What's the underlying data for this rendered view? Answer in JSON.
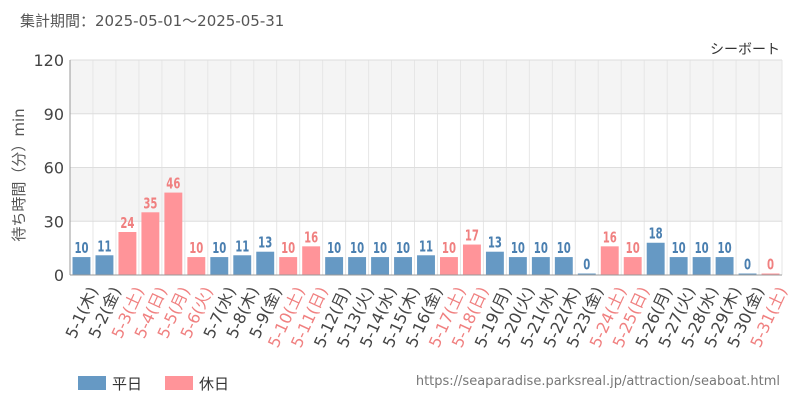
{
  "period_label": "集計期間：2025-05-01～2025-05-31",
  "source_url": "https://seaparadise.parksreal.jp/attraction/seaboat.html",
  "colors": {
    "weekday": "#6699c4",
    "holiday": "#ff9499",
    "weekday_label": "#4a7fb0",
    "holiday_label": "#f08080"
  },
  "chart_data": {
    "type": "bar",
    "title": "シーボート",
    "ylabel": "待ち時間（分）min",
    "ylim": [
      0,
      120
    ],
    "yticks": [
      0,
      30,
      60,
      90,
      120
    ],
    "grid": true,
    "legend_position": "bottom-left",
    "legend": [
      {
        "name": "平日",
        "key": "weekday"
      },
      {
        "name": "休日",
        "key": "holiday"
      }
    ],
    "categories": [
      "5-1(木)",
      "5-2(金)",
      "5-3(土)",
      "5-4(日)",
      "5-5(月)",
      "5-6(火)",
      "5-7(水)",
      "5-8(木)",
      "5-9(金)",
      "5-10(土)",
      "5-11(日)",
      "5-12(月)",
      "5-13(火)",
      "5-14(水)",
      "5-15(木)",
      "5-16(金)",
      "5-17(土)",
      "5-18(日)",
      "5-19(月)",
      "5-20(火)",
      "5-21(水)",
      "5-22(木)",
      "5-23(金)",
      "5-24(土)",
      "5-25(日)",
      "5-26(月)",
      "5-27(火)",
      "5-28(水)",
      "5-29(木)",
      "5-30(金)",
      "5-31(土)"
    ],
    "values": [
      10,
      11,
      24,
      35,
      46,
      10,
      10,
      11,
      13,
      10,
      16,
      10,
      10,
      10,
      10,
      11,
      10,
      17,
      13,
      10,
      10,
      10,
      0,
      16,
      10,
      18,
      10,
      10,
      10,
      0,
      0
    ],
    "day_type": [
      "weekday",
      "weekday",
      "holiday",
      "holiday",
      "holiday",
      "holiday",
      "weekday",
      "weekday",
      "weekday",
      "holiday",
      "holiday",
      "weekday",
      "weekday",
      "weekday",
      "weekday",
      "weekday",
      "holiday",
      "holiday",
      "weekday",
      "weekday",
      "weekday",
      "weekday",
      "weekday",
      "holiday",
      "holiday",
      "weekday",
      "weekday",
      "weekday",
      "weekday",
      "weekday",
      "holiday"
    ]
  }
}
